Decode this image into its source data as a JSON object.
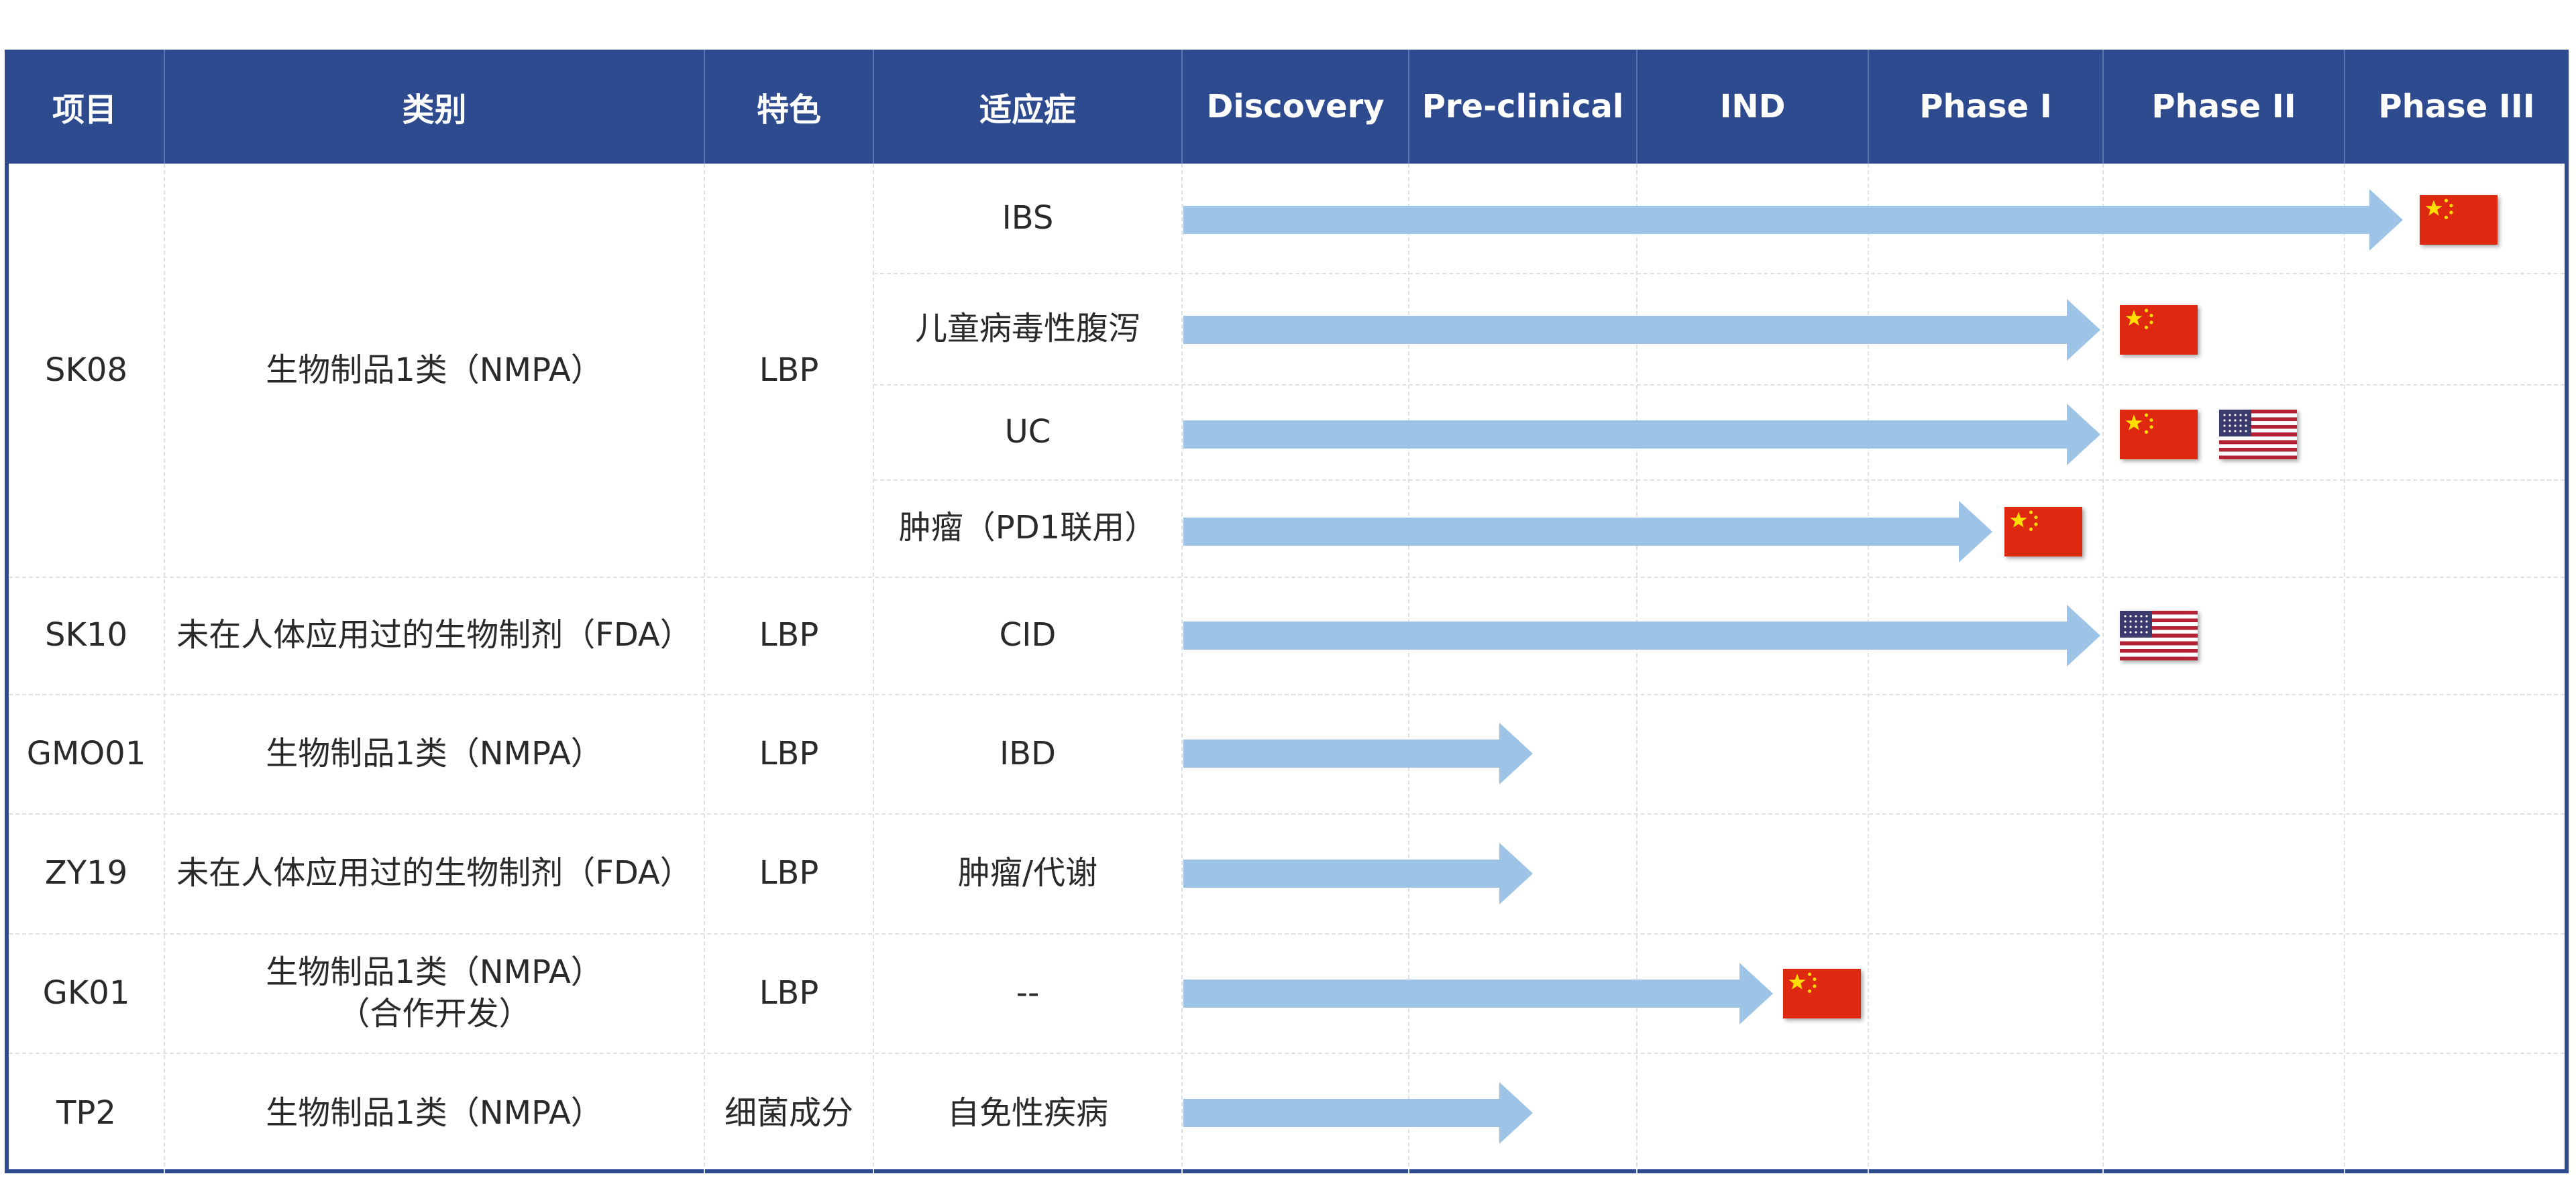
{
  "header": {
    "columns": [
      "项目",
      "类别",
      "特色",
      "适应症",
      "Discovery",
      "Pre-clinical",
      "IND",
      "Phase I",
      "Phase II",
      "Phase III"
    ]
  },
  "pipeline": [
    {
      "project": "SK08",
      "category": "生物制品1类（NMPA）",
      "feature": "LBP",
      "indication": "IBS",
      "stage": "Phase III",
      "flags": [
        "china-flag"
      ]
    },
    {
      "project": "",
      "category": "",
      "feature": "",
      "indication": "儿童病毒性腹泻",
      "stage": "Phase II",
      "flags": [
        "china-flag"
      ]
    },
    {
      "project": "",
      "category": "",
      "feature": "",
      "indication": "UC",
      "stage": "Phase II",
      "flags": [
        "china-flag",
        "usa-flag"
      ]
    },
    {
      "project": "",
      "category": "",
      "feature": "",
      "indication": "肿瘤（PD1联用）",
      "stage": "Phase I",
      "flags": [
        "china-flag"
      ]
    },
    {
      "project": "SK10",
      "category": "未在人体应用过的生物制剂（FDA）",
      "feature": "LBP",
      "indication": "CID",
      "stage": "Phase II",
      "flags": [
        "usa-flag"
      ]
    },
    {
      "project": "GMO01",
      "category": "生物制品1类（NMPA）",
      "feature": "LBP",
      "indication": "IBD",
      "stage": "Pre-clinical",
      "flags": []
    },
    {
      "project": "ZY19",
      "category": "未在人体应用过的生物制剂（FDA）",
      "feature": "LBP",
      "indication": "肿瘤/代谢",
      "stage": "Pre-clinical",
      "flags": []
    },
    {
      "project": "GK01",
      "category": "生物制品1类（NMPA）",
      "category_line2": "（合作开发）",
      "feature": "LBP",
      "indication": "--",
      "stage": "IND",
      "flags": [
        "china-flag"
      ]
    },
    {
      "project": "TP2",
      "category": "生物制品1类（NMPA）",
      "feature": "细菌成分",
      "indication": "自免性疾病",
      "stage": "Pre-clinical",
      "flags": []
    }
  ],
  "colors": {
    "header_bg": "#2f4b8f",
    "arrow": "#9dc3e6",
    "border": "#2e4b8e",
    "china_red": "#de2910",
    "china_star": "#ffde00"
  }
}
